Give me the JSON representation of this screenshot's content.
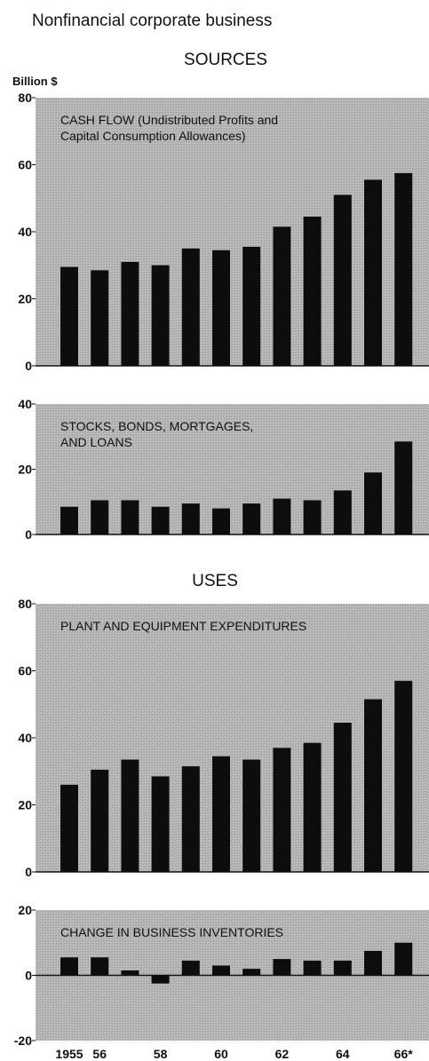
{
  "header": {
    "title": "Nonfinancial corporate business",
    "sources_heading": "SOURCES",
    "uses_heading": "USES",
    "unit_label": "Billion $"
  },
  "colors": {
    "bar": "#0d0d0d",
    "panel": "#b4b4b4",
    "text": "#111111"
  },
  "x_tick_labels": [
    "1955",
    "56",
    "",
    "58",
    "",
    "60",
    "",
    "62",
    "",
    "64",
    "",
    "66*"
  ],
  "chart_data": [
    {
      "type": "bar",
      "title": "CASH FLOW (Undistributed Profits and Capital Consumption Allowances)",
      "title_lines": [
        "CASH FLOW (Undistributed Profits and",
        "Capital Consumption Allowances)"
      ],
      "categories": [
        "1955",
        "1956",
        "1957",
        "1958",
        "1959",
        "1960",
        "1961",
        "1962",
        "1963",
        "1964",
        "1965",
        "1966"
      ],
      "values": [
        29.5,
        28.5,
        31,
        30,
        35,
        34.5,
        35.5,
        41.5,
        44.5,
        51,
        55.5,
        57.5
      ],
      "ylim": [
        0,
        80
      ],
      "yticks": [
        0,
        20,
        40,
        60,
        80
      ],
      "grid": false
    },
    {
      "type": "bar",
      "title": "STOCKS, BONDS, MORTGAGES, AND LOANS",
      "title_lines": [
        "STOCKS, BONDS, MORTGAGES,",
        "AND LOANS"
      ],
      "categories": [
        "1955",
        "1956",
        "1957",
        "1958",
        "1959",
        "1960",
        "1961",
        "1962",
        "1963",
        "1964",
        "1965",
        "1966"
      ],
      "values": [
        8.5,
        10.5,
        10.5,
        8.5,
        9.5,
        8,
        9.5,
        11,
        10.5,
        13.5,
        19,
        28.5
      ],
      "ylim": [
        0,
        40
      ],
      "yticks": [
        0,
        20,
        40
      ],
      "grid": false
    },
    {
      "type": "bar",
      "title": "PLANT AND EQUIPMENT EXPENDITURES",
      "title_lines": [
        "PLANT AND EQUIPMENT EXPENDITURES"
      ],
      "categories": [
        "1955",
        "1956",
        "1957",
        "1958",
        "1959",
        "1960",
        "1961",
        "1962",
        "1963",
        "1964",
        "1965",
        "1966"
      ],
      "values": [
        26,
        30.5,
        33.5,
        28.5,
        31.5,
        34.5,
        33.5,
        37,
        38.5,
        44.5,
        51.5,
        57
      ],
      "ylim": [
        0,
        80
      ],
      "yticks": [
        0,
        20,
        40,
        60,
        80
      ],
      "grid": false
    },
    {
      "type": "bar",
      "title": "CHANGE IN BUSINESS INVENTORIES",
      "title_lines": [
        "CHANGE IN BUSINESS INVENTORIES"
      ],
      "categories": [
        "1955",
        "1956",
        "1957",
        "1958",
        "1959",
        "1960",
        "1961",
        "1962",
        "1963",
        "1964",
        "1965",
        "1966"
      ],
      "values": [
        5.5,
        5.5,
        1.5,
        -2.5,
        4.5,
        3,
        2,
        5,
        4.5,
        4.5,
        7.5,
        10
      ],
      "ylim": [
        -20,
        20
      ],
      "yticks": [
        -20,
        0,
        20
      ],
      "grid": false
    }
  ]
}
